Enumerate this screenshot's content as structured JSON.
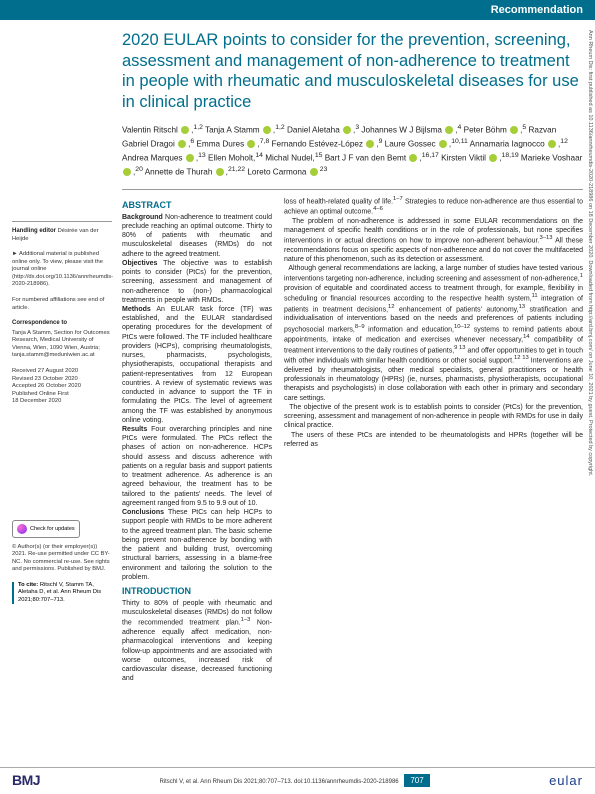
{
  "banner": {
    "label": "Recommendation",
    "bg": "#006e8c"
  },
  "title": "2020 EULAR points to consider for the prevention, screening, assessment and management of non-adherence to treatment in people with rheumatic and musculoskeletal diseases for use in clinical practice",
  "authors_html": "Valentin Ritschl <span class='orcid'></span>,<sup>1,2</sup> Tanja A Stamm <span class='orcid'></span>,<sup>1,2</sup> Daniel Aletaha <span class='orcid'></span>,<sup>3</sup> Johannes W J Bijlsma <span class='orcid'></span>,<sup>4</sup> Peter Böhm <span class='orcid'></span>,<sup>5</sup> Razvan Gabriel Dragoi <span class='orcid'></span>,<sup>6</sup> Emma Dures <span class='orcid'></span>,<sup>7,8</sup> Fernando Estévez-López <span class='orcid'></span>,<sup>9</sup> Laure Gossec <span class='orcid'></span>,<sup>10,11</sup> Annamaria Iagnocco <span class='orcid'></span>,<sup>12</sup> Andrea Marques <span class='orcid'></span>,<sup>13</sup> Ellen Moholt,<sup>14</sup> Michal Nudel,<sup>15</sup> Bart J F van den Bemt <span class='orcid'></span>,<sup>16,17</sup> Kirsten Viktil <span class='orcid'></span>,<sup>18,19</sup> Marieke Voshaar <span class='orcid'></span>,<sup>20</sup> Annette de Thurah <span class='orcid'></span>,<sup>21,22</sup> Loreto Carmona <span class='orcid'></span><sup>23</sup>",
  "sidebar": {
    "handling_label": "Handling editor",
    "handling_value": "Désirée van der Heijde",
    "supplemental": "► Additional material is published online only. To view, please visit the journal online (http://dx.doi.org/10.1136/annrheumdis-2020-218986).",
    "affiliations": "For numbered affiliations see end of article.",
    "correspondence_label": "Correspondence to",
    "correspondence_body": "Tanja A Stamm, Section for Outcomes Research, Medical University of Vienna, Wien, 1090 Wien, Austria; tanja.stamm@meduniwien.ac.at",
    "dates": "Received 27 August 2020\nRevised 23 October 2020\nAccepted 26 October 2020\nPublished Online First\n18 December 2020",
    "check_label": "Check for updates",
    "copyright": "© Author(s) (or their employer(s)) 2021. Re-use permitted under CC BY-NC. No commercial re-use. See rights and permissions. Published by BMJ.",
    "cite_label": "To cite:",
    "cite_body": "Ritschl V, Stamm TA, Aletaha D, et al. Ann Rheum Dis 2021;80:707–713."
  },
  "abstract": {
    "head": "ABSTRACT",
    "body": "<b>Background</b> Non-adherence to treatment could preclude reaching an optimal outcome. Thirty to 80% of patients with rheumatic and musculoskeletal diseases (RMDs) do not adhere to the agreed treatment.<br><b>Objectives</b> The objective was to establish points to consider (PtCs) for the prevention, screening, assessment and management of non-adherence to (non-) pharmacological treatments in people with RMDs.<br><b>Methods</b> An EULAR task force (TF) was established, and the EULAR standardised operating procedures for the development of PtCs were followed. The TF included healthcare providers (HCPs), comprising rheumatologists, nurses, pharmacists, psychologists, physiotherapists, occupational therapists and patient-representatives from 12 European countries. A review of systematic reviews was conducted in advance to support the TF in formulating the PtCs. The level of agreement among the TF was established by anonymous online voting.<br><b>Results</b> Four overarching principles and nine PtCs were formulated. The PtCs reflect the phases of action on non-adherence. HCPs should assess and discuss adherence with patients on a regular basis and support patients to treatment adherence. As adherence is an agreed behaviour, the treatment has to be tailored to the patients' needs. The level of agreement ranged from 9.5 to 9.9 out of 10.<br><b>Conclusions</b> These PtCs can help HCPs to support people with RMDs to be more adherent to the agreed treatment plan. The basic scheme being prevent non-adherence by bonding with the patient and building trust, overcoming structural barriers, assessing in a blame-free environment and tailoring the solution to the problem."
  },
  "introduction": {
    "head": "INTRODUCTION",
    "body_left": "Thirty to 80% of people with rheumatic and musculoskeletal diseases (RMDs) do not follow the recommended treatment plan.<sup>1–3</sup> Non-adherence equally affect medication, non-pharmacological interventions and keeping follow-up appointments and are associated with worse outcomes, increased risk of cardiovascular disease, decreased functioning and",
    "body_right": "loss of health-related quality of life.<sup>1–7</sup> Strategies to reduce non-adherence are thus essential to achieve an optimal outcome.<sup>4–6</sup><br>&nbsp;&nbsp;The problem of non-adherence is addressed in some EULAR recommendations on the management of specific health conditions or in the role of professionals, but none specifies interventions in or actual directions on how to improve non-adherent behaviour.<sup>3–13</sup> All these recommendations focus on specific aspects of non-adherence and do not cover the multifaceted nature of this phenomenon, such as its detection or assessment.<br>&nbsp;&nbsp;Although general recommendations are lacking, a large number of studies have tested various interventions targeting non-adherence, including screening and assessment of non-adherence,<sup>1</sup> provision of equitable and coordinated access to treatment through, for example, flexibility in scheduling or financial resources according to the respective health system,<sup>11</sup> integration of patients in treatment decisions,<sup>12</sup> enhancement of patients' autonomy,<sup>13</sup> stratification and individualisation of interventions based on the needs and preferences of patients including psychosocial markers,<sup>8–9</sup> information and education,<sup>10–12</sup> systems to remind patients about appointments, intake of medication and exercises whenever necessary,<sup>14</sup> compatibility of treatment interventions to the daily routines of patients,<sup>9 13</sup> and offer opportunities to get in touch with other individuals with similar health conditions or other social support.<sup>12 13</sup> Interventions are delivered by rheumatologists, other medical specialists, general practitioners or health professionals in rheumatology (HPRs) (ie, nurses, pharmacists, physiotherapists, occupational therapists and psychologists) in close collaboration with each other in primary and secondary care settings.<br>&nbsp;&nbsp;The objective of the present work is to establish points to consider (PtCs) for the prevention, screening, assessment and management of non-adherence in people with RMDs for use in daily clinical practice.<br>&nbsp;&nbsp;The users of these PtCs are intended to be rheumatologists and HPRs (together will be referred as"
  },
  "footer": {
    "bmj": "BMJ",
    "cite": "Ritschl V, et al. Ann Rheum Dis 2021;80:707–713. doi:10.1136/annrheumdis-2020-218986",
    "page": "707",
    "eular": "eular"
  },
  "side": "Ann Rheum Dis: first published as 10.1136/annrheumdis-2020-218986 on 18 December 2020. Downloaded from http://ard.bmj.com/ on June 10, 2021 by guest. Protected by copyright."
}
